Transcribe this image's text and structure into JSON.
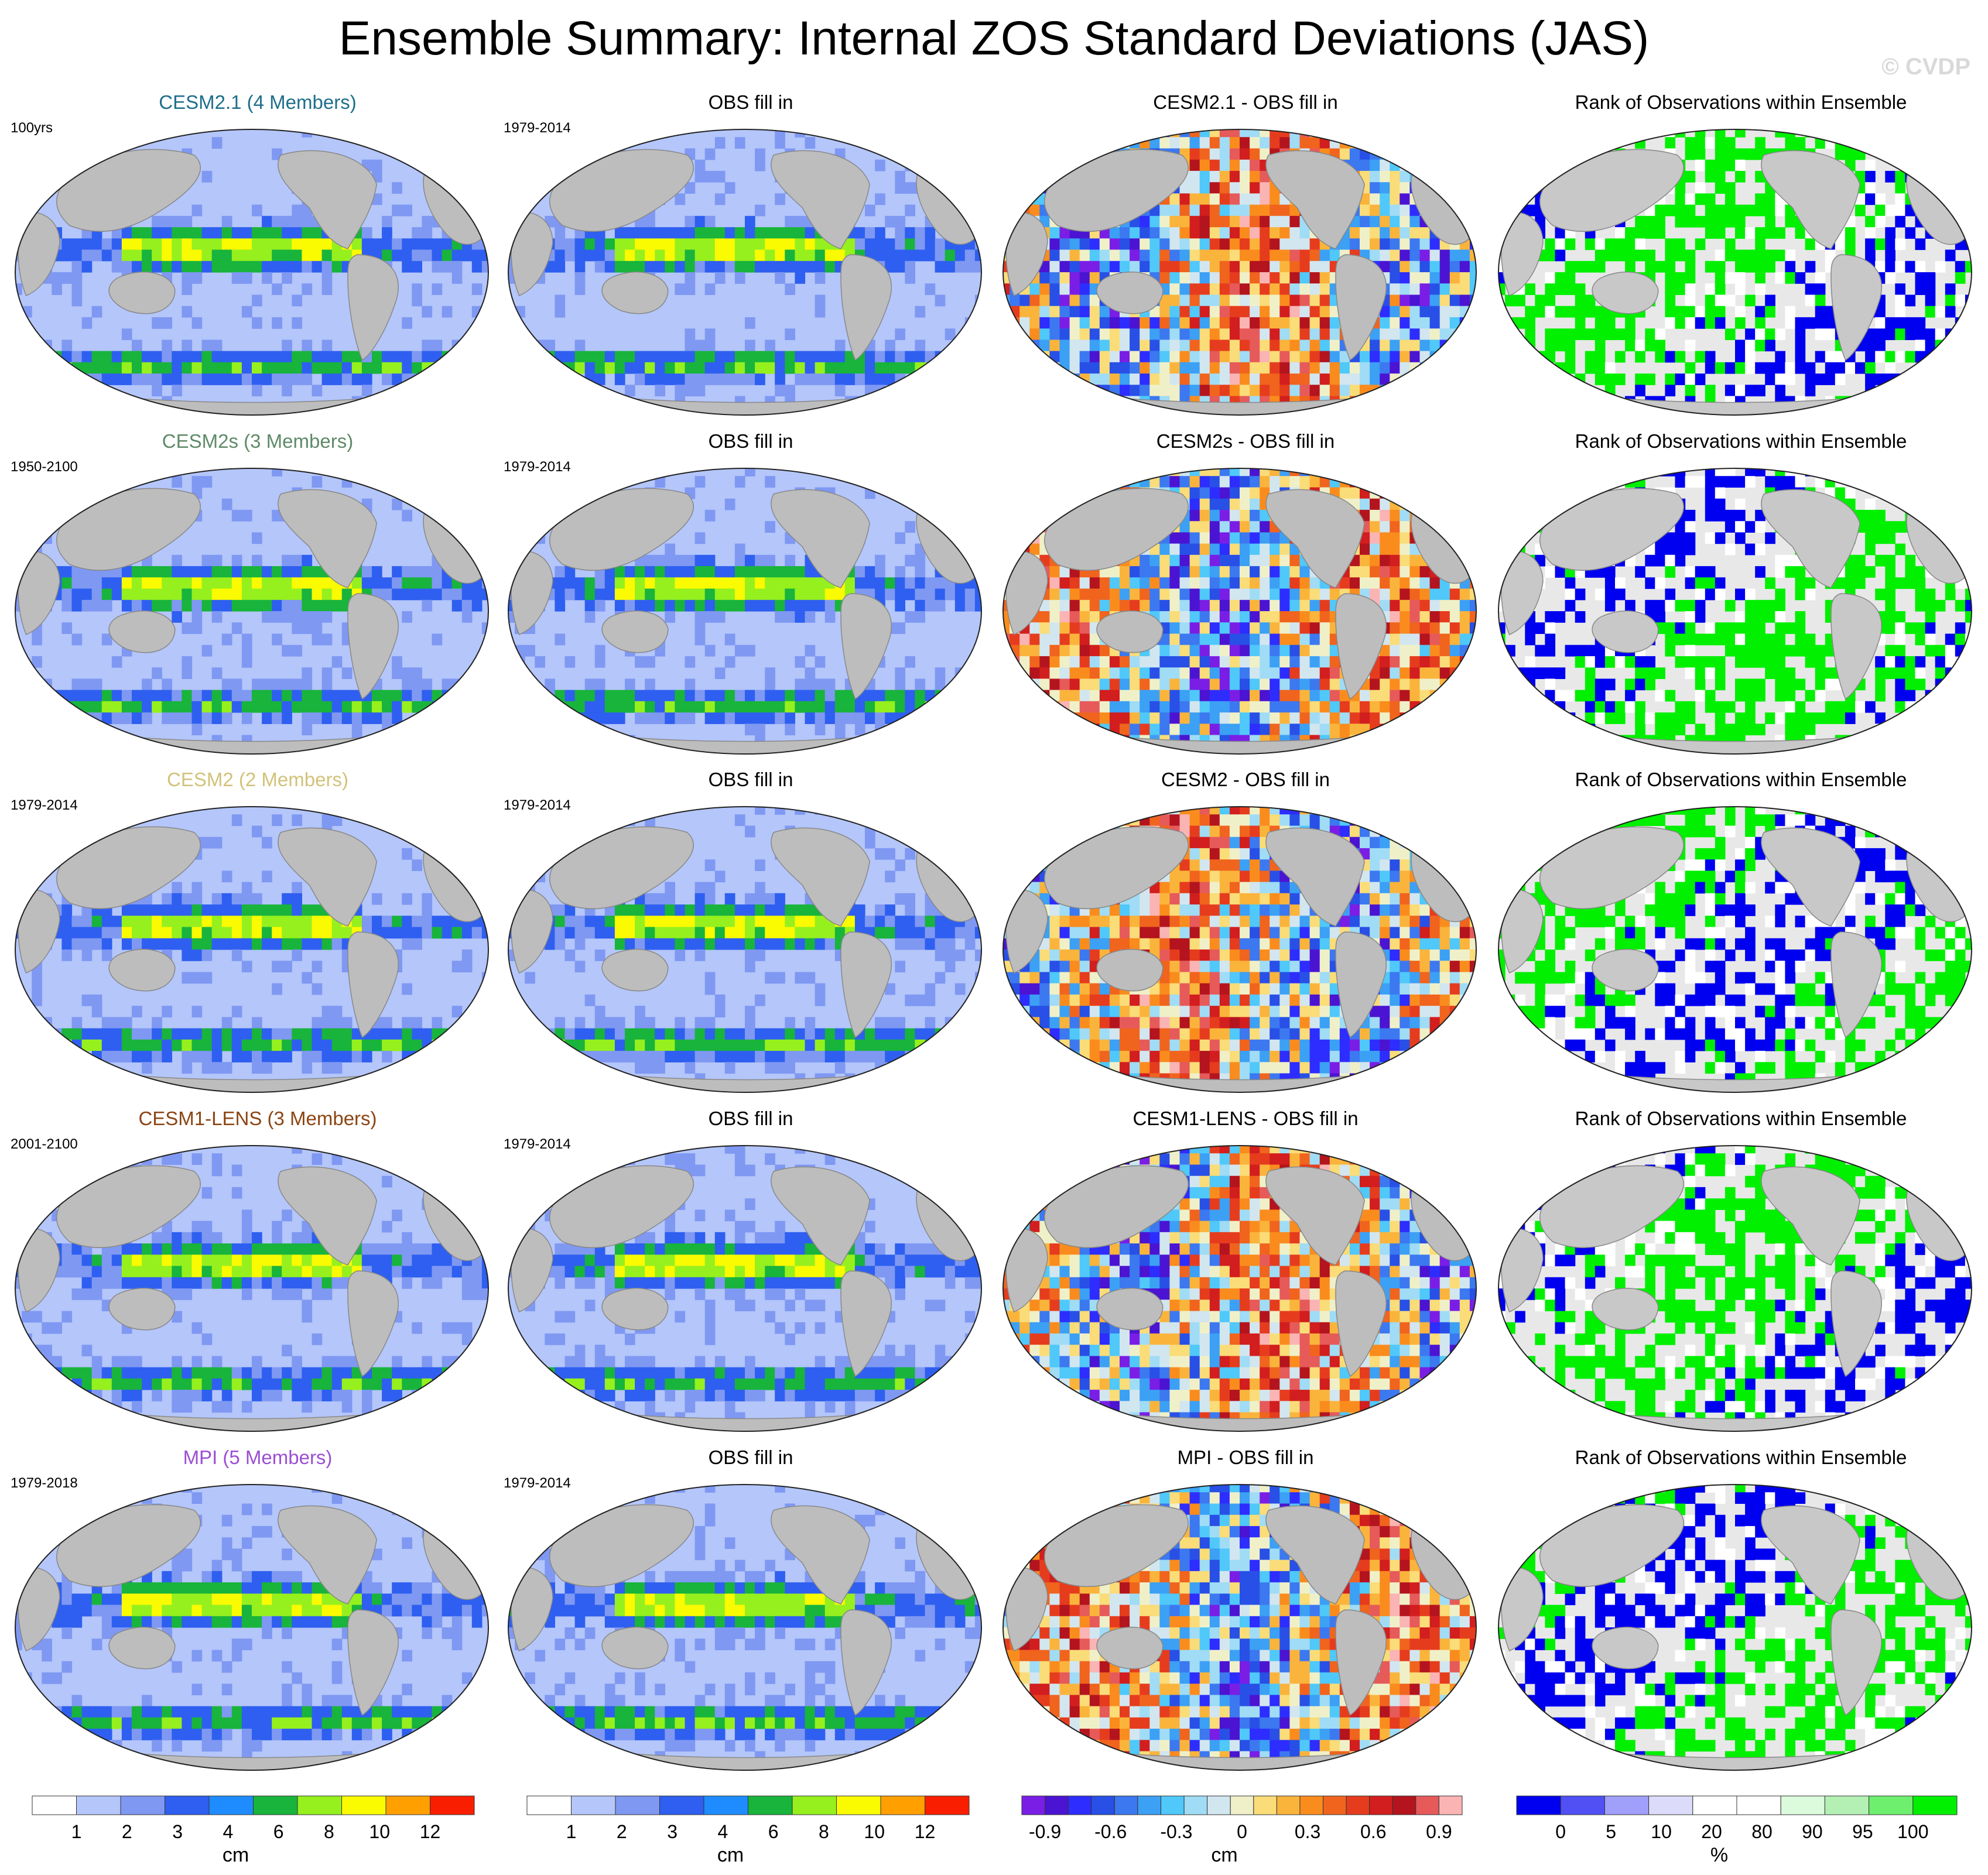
{
  "title": "Ensemble Summary: Internal ZOS Standard Deviations (JAS)",
  "watermark": "© CVDP",
  "rows": [
    {
      "ens_title": "CESM2.1 (4 Members)",
      "ens_color": "#1e6e8c",
      "period": "100yrs",
      "obs_title": "OBS fill in",
      "obs_period": "1979-2014",
      "diff_title": "CESM2.1 - OBS fill in",
      "rank_title": "Rank of Observations within Ensemble"
    },
    {
      "ens_title": "CESM2s (3 Members)",
      "ens_color": "#5e8a68",
      "period": "1950-2100",
      "obs_title": "OBS fill in",
      "obs_period": "1979-2014",
      "diff_title": "CESM2s - OBS fill in",
      "rank_title": "Rank of Observations within Ensemble"
    },
    {
      "ens_title": "CESM2 (2 Members)",
      "ens_color": "#d2c27a",
      "period": "1979-2014",
      "obs_title": "OBS fill in",
      "obs_period": "1979-2014",
      "diff_title": "CESM2 - OBS fill in",
      "rank_title": "Rank of Observations within Ensemble"
    },
    {
      "ens_title": "CESM1-LENS (3 Members)",
      "ens_color": "#8b4513",
      "period": "2001-2100",
      "obs_title": "OBS fill in",
      "obs_period": "1979-2014",
      "diff_title": "CESM1-LENS - OBS fill in",
      "rank_title": "Rank of Observations within Ensemble"
    },
    {
      "ens_title": "MPI (5 Members)",
      "ens_color": "#9b4fd4",
      "period": "1979-2018",
      "obs_title": "OBS fill in",
      "obs_period": "1979-2014",
      "diff_title": "MPI - OBS fill in",
      "rank_title": "Rank of Observations within Ensemble"
    }
  ],
  "colorbars": {
    "std": {
      "unit": "cm",
      "labels": [
        "1",
        "2",
        "3",
        "4",
        "6",
        "8",
        "10",
        "12"
      ],
      "colors": [
        "#ffffff",
        "#b4c6fa",
        "#7f98f2",
        "#2e5ff0",
        "#1e8cff",
        "#18b43c",
        "#96f01e",
        "#fafa00",
        "#ffa000",
        "#fa1e00"
      ]
    },
    "diff": {
      "unit": "cm",
      "labels": [
        "-0.9",
        "-0.6",
        "-0.3",
        "0",
        "0.3",
        "0.6",
        "0.9"
      ],
      "colors": [
        "#7a1ee6",
        "#4b14d2",
        "#2d2dff",
        "#2850e6",
        "#3c78f0",
        "#3ca0f5",
        "#50c8fa",
        "#a0dcf5",
        "#d2e6f0",
        "#f0f0c8",
        "#fadc78",
        "#fab43c",
        "#fa8c1e",
        "#f0641e",
        "#e63c1e",
        "#d21e1e",
        "#b4141e",
        "#e65a5a",
        "#fab4b4"
      ]
    },
    "rank": {
      "unit": "%",
      "labels": [
        "0",
        "5",
        "10",
        "20",
        "80",
        "90",
        "95",
        "100"
      ],
      "colors": [
        "#0000f0",
        "#5050f5",
        "#a0a0fa",
        "#dcdcfa",
        "#ffffff",
        "#ffffff",
        "#dcfadc",
        "#b4f0b4",
        "#6ef06e",
        "#00f000"
      ]
    }
  }
}
